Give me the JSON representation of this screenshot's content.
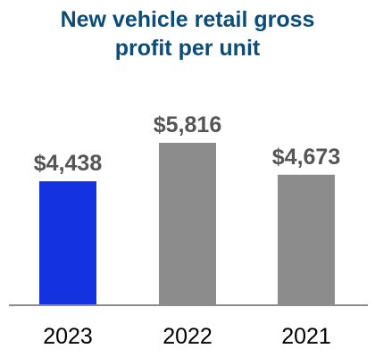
{
  "chart_data": {
    "type": "bar",
    "title_lines": [
      "New vehicle retail gross",
      "profit per unit"
    ],
    "categories": [
      "2023",
      "2022",
      "2021"
    ],
    "values": [
      4438,
      5816,
      4673
    ],
    "value_labels": [
      "$4,438",
      "$5,816",
      "$4,673"
    ],
    "bar_colors": [
      "#1432e0",
      "#8c8c8c",
      "#8c8c8c"
    ],
    "ylim": [
      0,
      5816
    ],
    "grid": false,
    "xlabel": "",
    "ylabel": ""
  },
  "colors": {
    "title": "#0b4d7a",
    "value_label": "#555555",
    "axis": "#8c8c8c"
  }
}
